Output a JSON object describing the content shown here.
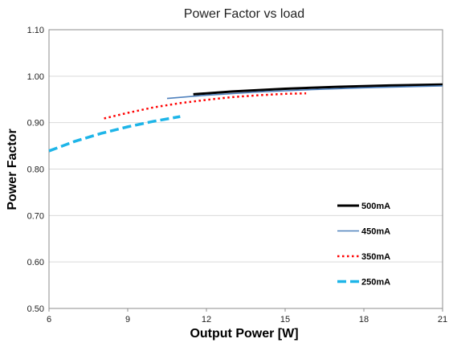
{
  "chart_data": {
    "type": "line",
    "title": "Power Factor vs load",
    "xlabel": "Output Power [W]",
    "ylabel": "Power Factor",
    "xlim": [
      6,
      21
    ],
    "ylim": [
      0.5,
      1.1
    ],
    "x_ticks": [
      6,
      9,
      12,
      15,
      18,
      21
    ],
    "x_tick_labels": [
      "6",
      "9",
      "12",
      "15",
      "18",
      "21"
    ],
    "y_ticks": [
      0.5,
      0.6,
      0.7,
      0.8,
      0.9,
      1.0,
      1.1
    ],
    "y_tick_labels": [
      "0.50",
      "0.60",
      "0.70",
      "0.80",
      "0.90",
      "1.00",
      "1.10"
    ],
    "grid": "horizontal",
    "legend_position": "right-bottom",
    "series": [
      {
        "name": "500mA",
        "color": "#000000",
        "style": "solid",
        "x": [
          11.5,
          13,
          15,
          17,
          19,
          21
        ],
        "y": [
          0.961,
          0.967,
          0.973,
          0.977,
          0.98,
          0.982
        ]
      },
      {
        "name": "450mA",
        "color": "#4f81bd",
        "style": "solid",
        "x": [
          10.5,
          12,
          14,
          16,
          18,
          21
        ],
        "y": [
          0.952,
          0.959,
          0.966,
          0.971,
          0.975,
          0.979
        ]
      },
      {
        "name": "350mA",
        "color": "#ff0000",
        "style": "dotted",
        "x": [
          8.1,
          9,
          10,
          11,
          12,
          13,
          14,
          15,
          15.8
        ],
        "y": [
          0.909,
          0.921,
          0.933,
          0.942,
          0.949,
          0.955,
          0.959,
          0.962,
          0.963
        ]
      },
      {
        "name": "250mA",
        "color": "#1eb5e8",
        "style": "dashed",
        "x": [
          6,
          7,
          8,
          9,
          10,
          11
        ],
        "y": [
          0.839,
          0.86,
          0.877,
          0.891,
          0.903,
          0.913
        ]
      }
    ]
  }
}
